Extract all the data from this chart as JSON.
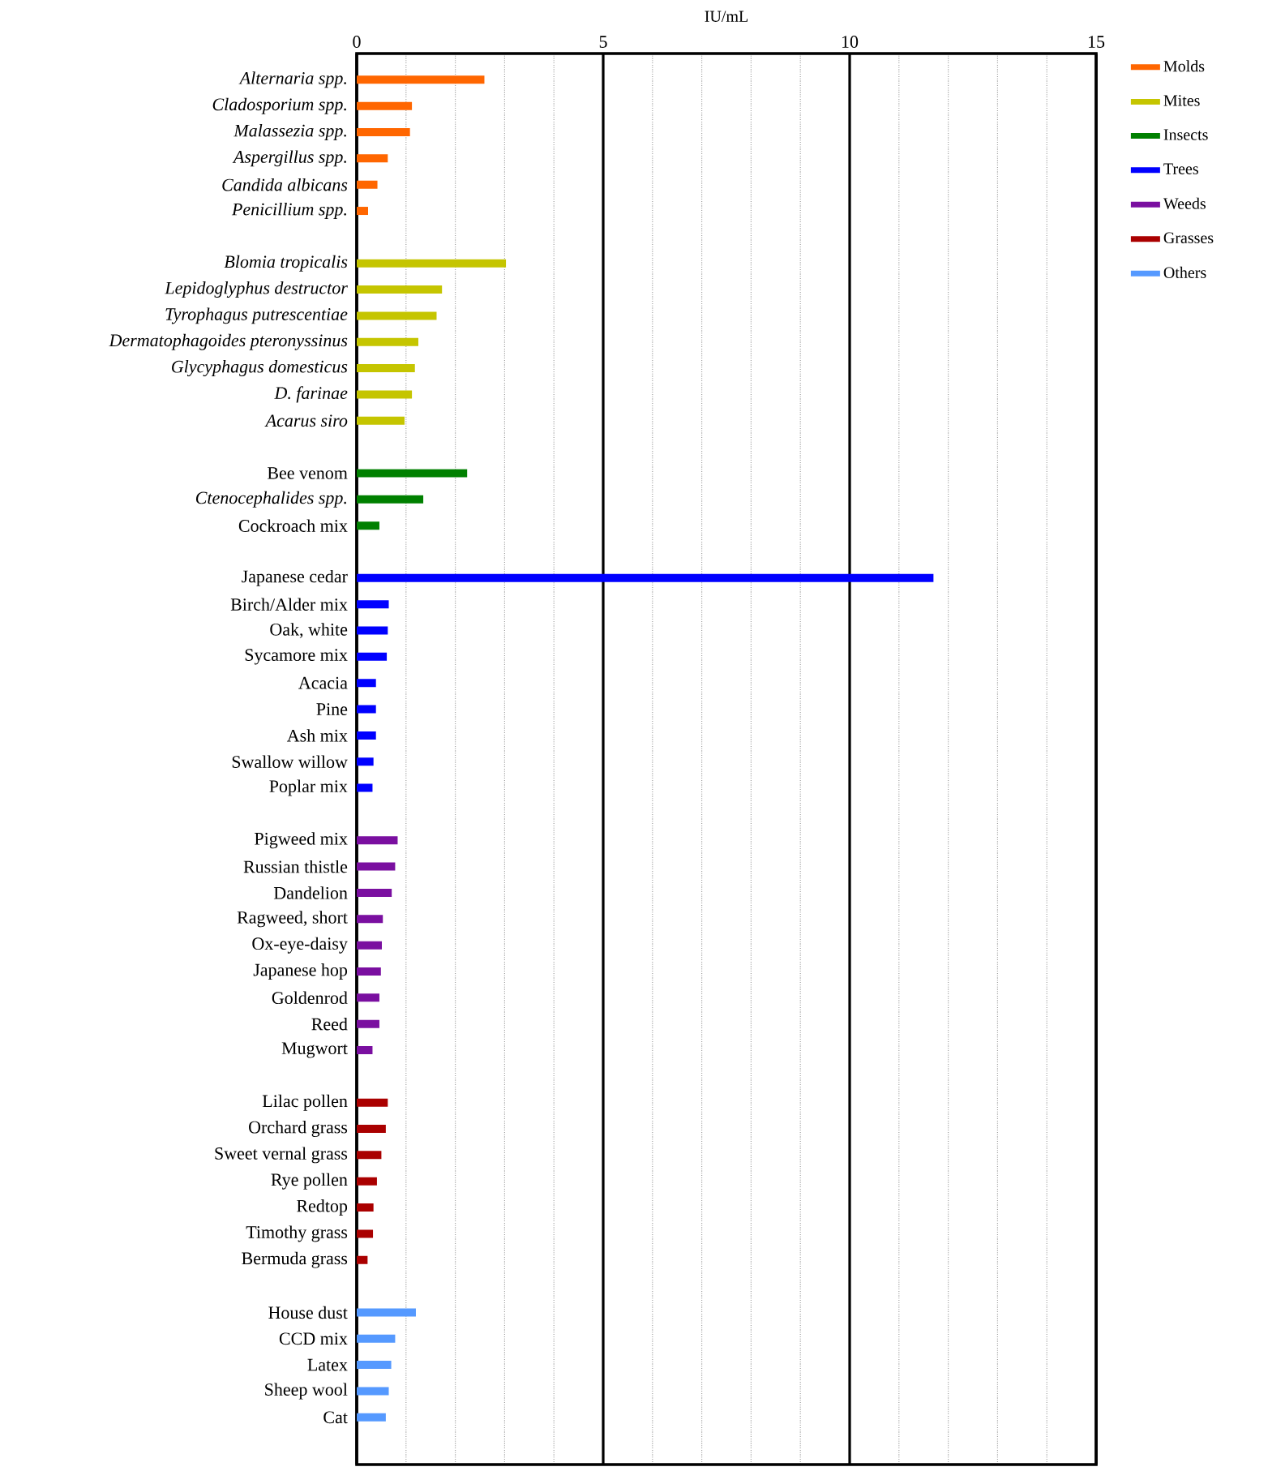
{
  "chart_data": {
    "type": "bar",
    "orientation": "horizontal",
    "xlabel": "IU/mL",
    "categories": [
      "*Alternaria spp.*",
      "*Cladosporium spp.*",
      "*Malassezia spp.*",
      "*Aspergillus spp.*",
      "*Candida albicans*",
      "*Penicillium spp.*",
      null,
      "*Blomia tropicalis*",
      "*Lepidoglyphus destructor*",
      "*Tyrophagus putrescentiae*",
      "*Dermatophagoides pteronyssinus*",
      "*Glycyphagus domesticus*",
      "*D. farinae*",
      "*Acarus siro*",
      null,
      "Bee venom",
      "*Ctenocephalides spp.*",
      "Cockroach mix",
      null,
      "Japanese cedar",
      "Birch/Alder mix",
      "Oak, white",
      "Sycamore mix",
      "Acacia",
      "Pine",
      "Ash mix",
      "Swallow willow",
      "Poplar mix",
      null,
      "Pigweed mix",
      "Russian thistle",
      "Dandelion",
      "Ragweed, short",
      "Ox-eye-daisy",
      "Japanese hop",
      "Goldenrod",
      "Reed",
      "Mugwort",
      null,
      "Lilac pollen",
      "Orchard grass",
      "Sweet vernal grass",
      "Rye pollen",
      "Redtop",
      "Timothy grass",
      "Bermuda grass",
      null,
      "House dust",
      "CCD mix",
      "Latex",
      "Sheep wool",
      "Cat"
    ],
    "series": [
      {
        "name": "Molds",
        "color": "#ff6600",
        "values": [
          2.59,
          1.12,
          1.08,
          0.63,
          0.42,
          0.23,
          null,
          null,
          null,
          null,
          null,
          null,
          null,
          null,
          null,
          null,
          null,
          null,
          null,
          null,
          null,
          null,
          null,
          null,
          null,
          null,
          null,
          null,
          null,
          null,
          null,
          null,
          null,
          null,
          null,
          null,
          null,
          null,
          null,
          null,
          null,
          null,
          null,
          null,
          null,
          null,
          null,
          null,
          null,
          null,
          null,
          null
        ]
      },
      {
        "name": "Mites",
        "color": "#c5c500",
        "values": [
          null,
          null,
          null,
          null,
          null,
          null,
          null,
          3.03,
          1.73,
          1.62,
          1.25,
          1.18,
          1.12,
          0.97,
          null,
          null,
          null,
          null,
          null,
          null,
          null,
          null,
          null,
          null,
          null,
          null,
          null,
          null,
          null,
          null,
          null,
          null,
          null,
          null,
          null,
          null,
          null,
          null,
          null,
          null,
          null,
          null,
          null,
          null,
          null,
          null,
          null,
          null,
          null,
          null,
          null,
          null
        ]
      },
      {
        "name": "Insects",
        "color": "#008000",
        "values": [
          null,
          null,
          null,
          null,
          null,
          null,
          null,
          null,
          null,
          null,
          null,
          null,
          null,
          null,
          null,
          2.24,
          1.35,
          0.46,
          null,
          null,
          null,
          null,
          null,
          null,
          null,
          null,
          null,
          null,
          null,
          null,
          null,
          null,
          null,
          null,
          null,
          null,
          null,
          null,
          null,
          null,
          null,
          null,
          null,
          null,
          null,
          null,
          null,
          null,
          null,
          null,
          null,
          null
        ]
      },
      {
        "name": "Trees",
        "color": "#0000ff",
        "values": [
          null,
          null,
          null,
          null,
          null,
          null,
          null,
          null,
          null,
          null,
          null,
          null,
          null,
          null,
          null,
          null,
          null,
          null,
          null,
          11.7,
          0.65,
          0.63,
          0.61,
          0.39,
          0.39,
          0.39,
          0.34,
          0.32,
          null,
          null,
          null,
          null,
          null,
          null,
          null,
          null,
          null,
          null,
          null,
          null,
          null,
          null,
          null,
          null,
          null,
          null,
          null,
          null,
          null,
          null,
          null,
          null
        ]
      },
      {
        "name": "Weeds",
        "color": "#7a0fa0",
        "values": [
          null,
          null,
          null,
          null,
          null,
          null,
          null,
          null,
          null,
          null,
          null,
          null,
          null,
          null,
          null,
          null,
          null,
          null,
          null,
          null,
          null,
          null,
          null,
          null,
          null,
          null,
          null,
          null,
          null,
          0.83,
          0.78,
          0.71,
          0.53,
          0.51,
          0.49,
          0.46,
          0.46,
          0.32,
          null,
          null,
          null,
          null,
          null,
          null,
          null,
          null,
          null,
          null,
          null,
          null,
          null,
          null
        ]
      },
      {
        "name": "Grasses",
        "color": "#aa0000",
        "values": [
          null,
          null,
          null,
          null,
          null,
          null,
          null,
          null,
          null,
          null,
          null,
          null,
          null,
          null,
          null,
          null,
          null,
          null,
          null,
          null,
          null,
          null,
          null,
          null,
          null,
          null,
          null,
          null,
          null,
          null,
          null,
          null,
          null,
          null,
          null,
          null,
          null,
          null,
          null,
          0.63,
          0.59,
          0.5,
          0.41,
          0.34,
          0.33,
          0.22,
          null,
          null,
          null,
          null,
          null,
          null
        ]
      },
      {
        "name": "Others",
        "color": "#5599ff",
        "values": [
          null,
          null,
          null,
          null,
          null,
          null,
          null,
          null,
          null,
          null,
          null,
          null,
          null,
          null,
          null,
          null,
          null,
          null,
          null,
          null,
          null,
          null,
          null,
          null,
          null,
          null,
          null,
          null,
          null,
          null,
          null,
          null,
          null,
          null,
          null,
          null,
          null,
          null,
          null,
          null,
          null,
          null,
          null,
          null,
          null,
          null,
          null,
          1.2,
          0.78,
          0.7,
          0.65,
          0.59
        ]
      }
    ],
    "xlim": [
      0,
      15
    ],
    "xticks": [
      0,
      5,
      10,
      15
    ],
    "grid": "x",
    "legend": "top right"
  }
}
